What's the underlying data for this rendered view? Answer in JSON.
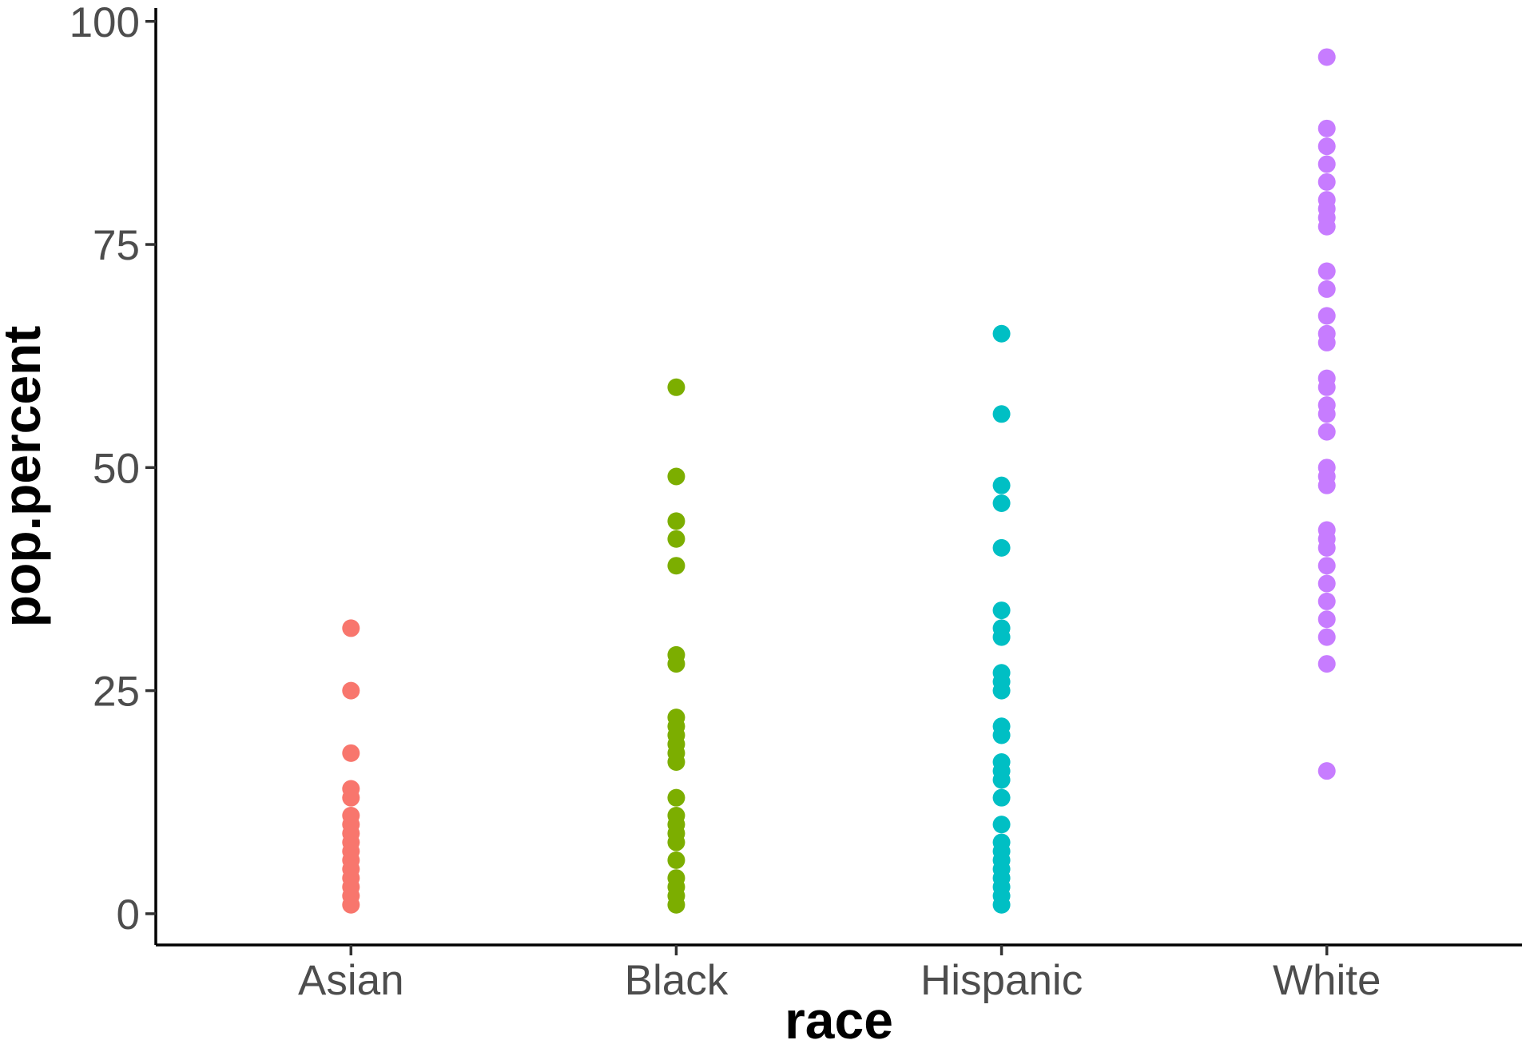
{
  "chart_data": {
    "type": "scatter",
    "title": "",
    "xlabel": "race",
    "ylabel": "pop.percent",
    "categories": [
      "Asian",
      "Black",
      "Hispanic",
      "White"
    ],
    "ylim": [
      -3.5,
      101.5
    ],
    "yticks": [
      0,
      25,
      50,
      75,
      100
    ],
    "ytick_labels": [
      "0",
      "25",
      "50",
      "75",
      "100"
    ],
    "grid": false,
    "legend": "none",
    "colors": [
      "#F8766D",
      "#7CAE00",
      "#00BFC4",
      "#C77CFF"
    ],
    "series": [
      {
        "category": "Asian",
        "values": [
          32,
          25,
          18,
          14,
          13,
          11,
          10,
          9,
          8,
          7,
          6,
          5,
          4,
          3,
          2,
          1
        ]
      },
      {
        "category": "Black",
        "values": [
          59,
          49,
          44,
          42,
          39,
          29,
          28,
          22,
          21,
          20,
          19,
          18,
          17,
          13,
          11,
          10,
          9,
          8,
          6,
          4,
          3,
          2,
          1
        ]
      },
      {
        "category": "Hispanic",
        "values": [
          65,
          56,
          48,
          46,
          41,
          34,
          32,
          31,
          27,
          26,
          25,
          21,
          20,
          17,
          16,
          15,
          13,
          10,
          8,
          7,
          6,
          5,
          4,
          3,
          2,
          1
        ]
      },
      {
        "category": "White",
        "values": [
          96,
          88,
          86,
          84,
          82,
          80,
          79,
          78,
          77,
          72,
          70,
          67,
          65,
          64,
          60,
          59,
          57,
          56,
          54,
          50,
          49,
          48,
          43,
          42,
          41,
          39,
          37,
          35,
          33,
          31,
          28,
          16
        ]
      }
    ]
  }
}
